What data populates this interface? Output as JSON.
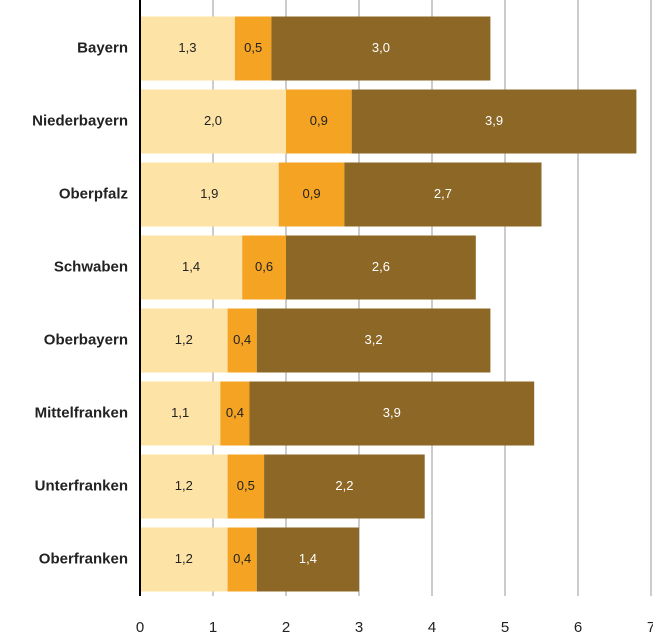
{
  "chart_data": {
    "type": "stacked-barh",
    "categories": [
      "Bayern",
      "Niederbayern",
      "Oberpfalz",
      "Schwaben",
      "Oberbayern",
      "Mittelfranken",
      "Unterfranken",
      "Oberfranken"
    ],
    "series": [
      {
        "color": "#fde3a6",
        "values": [
          1.3,
          2.0,
          1.9,
          1.4,
          1.2,
          1.1,
          1.2,
          1.2
        ],
        "value_labels": [
          "1,3",
          "2,0",
          "1,9",
          "1,4",
          "1,2",
          "1,1",
          "1,2",
          "1,2"
        ]
      },
      {
        "color": "#f4a422",
        "values": [
          0.5,
          0.9,
          0.9,
          0.6,
          0.4,
          0.4,
          0.5,
          0.4
        ],
        "value_labels": [
          "0,5",
          "0,9",
          "0,9",
          "0,6",
          "0,4",
          "0,4",
          "0,5",
          "0,4"
        ]
      },
      {
        "color": "#8c6725",
        "values": [
          3.0,
          3.9,
          2.7,
          2.6,
          3.2,
          3.9,
          2.2,
          1.4
        ],
        "value_labels": [
          "3,0",
          "3,9",
          "2,7",
          "2,6",
          "3,2",
          "3,9",
          "2,2",
          "1,4"
        ]
      }
    ],
    "xlim": [
      0,
      7
    ],
    "xticks": [
      0,
      1,
      2,
      3,
      4,
      5,
      6,
      7
    ],
    "grid": true
  }
}
